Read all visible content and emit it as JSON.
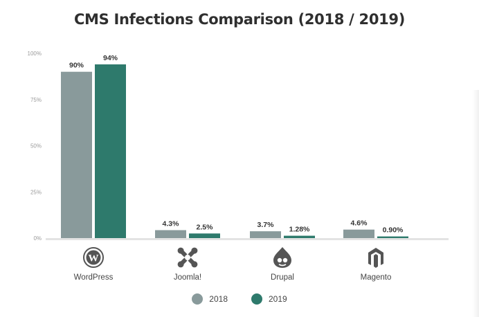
{
  "chart_data": {
    "type": "bar",
    "title": "CMS Infections Comparison (2018 / 2019)",
    "categories": [
      "WordPress",
      "Joomla!",
      "Drupal",
      "Magento"
    ],
    "category_icons": [
      "wordpress-icon",
      "joomla-icon",
      "drupal-icon",
      "magento-icon"
    ],
    "series": [
      {
        "name": "2018",
        "values": [
          90,
          4.3,
          3.7,
          4.6
        ],
        "labels": [
          "90%",
          "4.3%",
          "3.7%",
          "4.6%"
        ],
        "color": "#899a9b"
      },
      {
        "name": "2019",
        "values": [
          94,
          2.5,
          1.28,
          0.9
        ],
        "labels": [
          "94%",
          "2.5%",
          "1.28%",
          "0.90%"
        ],
        "color": "#2e7a6c"
      }
    ],
    "ylim": [
      0,
      100
    ],
    "yticks": [
      "100%",
      "75%",
      "50%",
      "25%",
      "0%"
    ],
    "ytick_values": [
      100,
      75,
      50,
      25,
      0
    ],
    "grid": false,
    "legend_position": "bottom-center"
  }
}
